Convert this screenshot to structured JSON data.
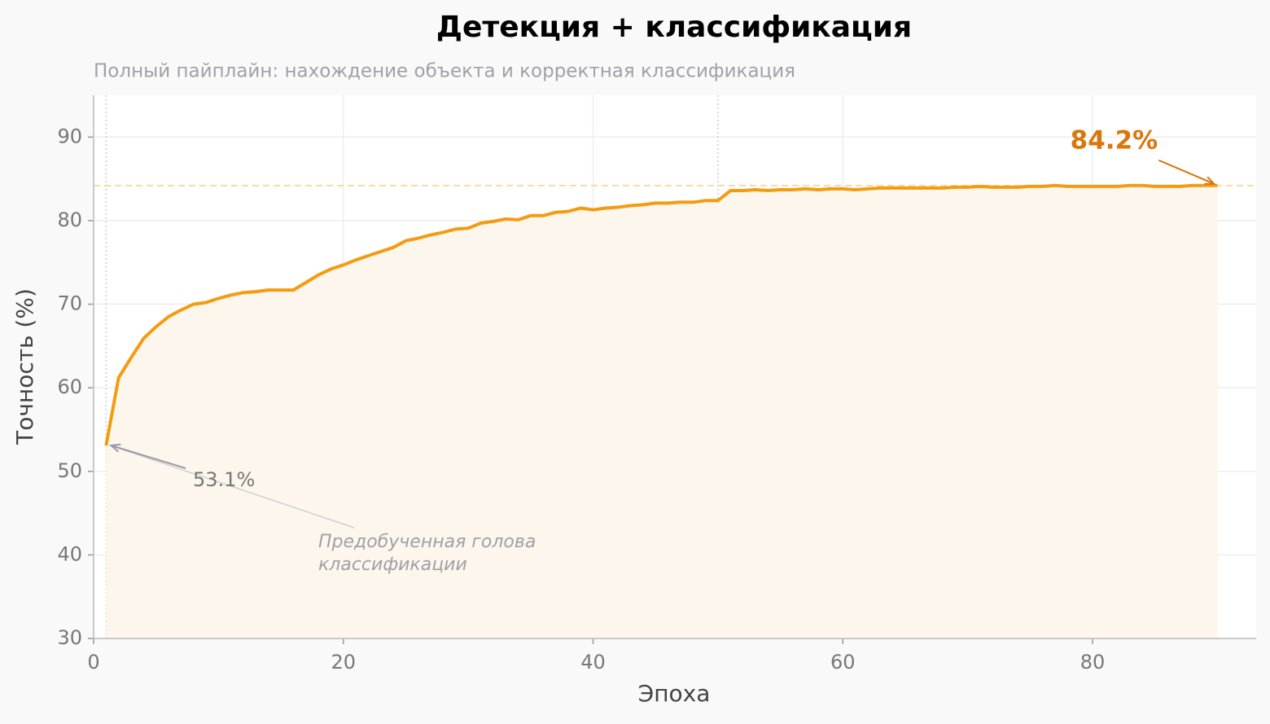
{
  "chart_data": {
    "type": "line",
    "title": "Детекция + классификация",
    "subtitle": "Полный пайплайн: нахождение объекта и корректная классификация",
    "x_label": "Эпоха",
    "y_label": "Точность (%)",
    "x": [
      1,
      2,
      3,
      4,
      5,
      6,
      7,
      8,
      9,
      10,
      11,
      12,
      13,
      14,
      15,
      16,
      17,
      18,
      19,
      20,
      21,
      22,
      23,
      24,
      25,
      26,
      27,
      28,
      29,
      30,
      31,
      32,
      33,
      34,
      35,
      36,
      37,
      38,
      39,
      40,
      41,
      42,
      43,
      44,
      45,
      46,
      47,
      48,
      49,
      50,
      51,
      52,
      53,
      54,
      55,
      56,
      57,
      58,
      59,
      60,
      61,
      62,
      63,
      64,
      65,
      66,
      67,
      68,
      69,
      70,
      71,
      72,
      73,
      74,
      75,
      76,
      77,
      78,
      79,
      80,
      81,
      82,
      83,
      84,
      85,
      86,
      87,
      88,
      89,
      90
    ],
    "values": [
      53.1,
      61.2,
      63.6,
      65.9,
      67.3,
      68.5,
      69.3,
      70.0,
      70.2,
      70.7,
      71.1,
      71.4,
      71.5,
      71.7,
      71.7,
      71.7,
      72.6,
      73.5,
      74.2,
      74.7,
      75.3,
      75.8,
      76.3,
      76.8,
      77.6,
      77.9,
      78.3,
      78.6,
      79.0,
      79.1,
      79.7,
      79.9,
      80.2,
      80.1,
      80.6,
      80.6,
      81.0,
      81.1,
      81.5,
      81.3,
      81.5,
      81.6,
      81.8,
      81.9,
      82.1,
      82.1,
      82.2,
      82.2,
      82.4,
      82.4,
      83.6,
      83.6,
      83.7,
      83.6,
      83.7,
      83.7,
      83.8,
      83.7,
      83.8,
      83.8,
      83.7,
      83.8,
      83.9,
      83.9,
      83.9,
      83.9,
      83.9,
      83.9,
      84.0,
      84.0,
      84.1,
      84.0,
      84.0,
      84.0,
      84.1,
      84.1,
      84.2,
      84.1,
      84.1,
      84.1,
      84.1,
      84.1,
      84.2,
      84.2,
      84.1,
      84.1,
      84.1,
      84.2,
      84.2,
      84.2
    ],
    "color": "#f39c12",
    "fill_color": "#fcf6ec",
    "xlim": [
      0,
      93.1
    ],
    "ylim": [
      30,
      95
    ],
    "xticks": [
      0,
      20,
      40,
      60,
      80
    ],
    "yticks": [
      30,
      40,
      50,
      60,
      70,
      80,
      90
    ],
    "grid": true,
    "vlines": [
      1,
      50
    ],
    "hline": 84.2,
    "annotations": [
      {
        "text": "84.2%",
        "x": 90,
        "y": 84.2
      },
      {
        "text": "53.1%",
        "x": 1,
        "y": 53.1
      },
      {
        "lines": [
          "Предобученная голова",
          "классификации"
        ],
        "x": 1,
        "y": 53.1
      }
    ]
  }
}
